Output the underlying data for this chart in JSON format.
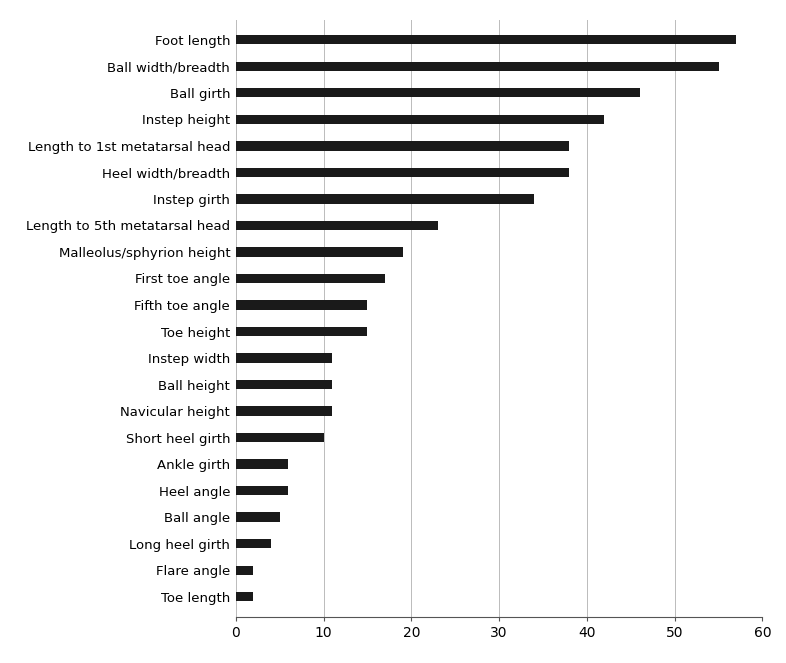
{
  "categories": [
    "Foot length",
    "Ball width/breadth",
    "Ball girth",
    "Instep height",
    "Length to 1st metatarsal head",
    "Heel width/breadth",
    "Instep girth",
    "Length to 5th metatarsal head",
    "Malleolus/sphyrion height",
    "First toe angle",
    "Fifth toe angle",
    "Toe height",
    "Instep width",
    "Ball height",
    "Navicular height",
    "Short heel girth",
    "Ankle girth",
    "Heel angle",
    "Ball angle",
    "Long heel girth",
    "Flare angle",
    "Toe length"
  ],
  "values": [
    57,
    55,
    46,
    42,
    38,
    38,
    34,
    23,
    19,
    17,
    15,
    15,
    11,
    11,
    11,
    10,
    6,
    6,
    5,
    4,
    2,
    2
  ],
  "bar_color": "#1a1a1a",
  "background_color": "#ffffff",
  "xlim": [
    0,
    60
  ],
  "xticks": [
    0,
    10,
    20,
    30,
    40,
    50,
    60
  ],
  "bar_height": 0.35,
  "figsize": [
    7.86,
    6.63
  ],
  "dpi": 100,
  "grid_color": "#bbbbbb",
  "tick_fontsize": 10,
  "label_fontsize": 9.5
}
